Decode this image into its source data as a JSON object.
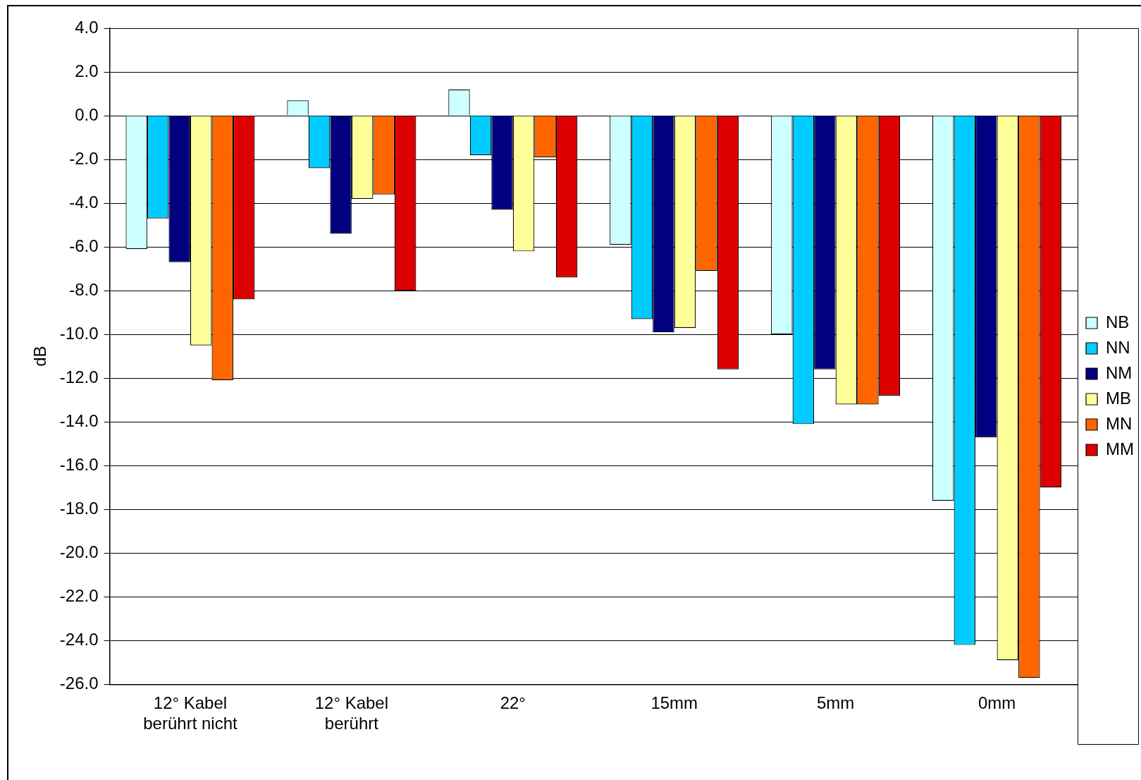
{
  "chart_data": {
    "type": "bar",
    "ylabel": "dB",
    "categories": [
      "12° Kabel\nberührt nicht",
      "12° Kabel\nberührt",
      "22°",
      "15mm",
      "5mm",
      "0mm"
    ],
    "series": [
      {
        "name": "NB",
        "color": "#ccffff",
        "values": [
          -6.1,
          0.7,
          1.2,
          -5.9,
          -10.0,
          -17.6
        ]
      },
      {
        "name": "NN",
        "color": "#00ccff",
        "values": [
          -4.7,
          -2.4,
          -1.8,
          -9.3,
          -14.1,
          -24.2
        ]
      },
      {
        "name": "NM",
        "color": "#000080",
        "values": [
          -6.7,
          -5.4,
          -4.3,
          -9.9,
          -11.6,
          -14.7
        ]
      },
      {
        "name": "MB",
        "color": "#ffff99",
        "values": [
          -10.5,
          -3.8,
          -6.2,
          -9.7,
          -13.2,
          -24.9
        ]
      },
      {
        "name": "MN",
        "color": "#ff6600",
        "values": [
          -12.1,
          -3.6,
          -1.9,
          -7.1,
          -13.2,
          -25.7
        ]
      },
      {
        "name": "MM",
        "color": "#dd0000",
        "values": [
          -8.4,
          -8.0,
          -7.4,
          -11.6,
          -12.8,
          -17.0
        ]
      }
    ],
    "ylim": [
      -26,
      4
    ],
    "yticks": [
      {
        "value": 4,
        "label": "4.0"
      },
      {
        "value": 2,
        "label": "2.0"
      },
      {
        "value": 0,
        "label": "0.0"
      },
      {
        "value": -2,
        "label": "-2.0"
      },
      {
        "value": -4,
        "label": "-4.0"
      },
      {
        "value": -6,
        "label": "-6.0"
      },
      {
        "value": -8,
        "label": "-8.0"
      },
      {
        "value": -10,
        "label": "-10.0"
      },
      {
        "value": -12,
        "label": "-12.0"
      },
      {
        "value": -14,
        "label": "-14.0"
      },
      {
        "value": -16,
        "label": "-16.0"
      },
      {
        "value": -18,
        "label": "-18.0"
      },
      {
        "value": -20,
        "label": "-20.0"
      },
      {
        "value": -22,
        "label": "-22.0"
      },
      {
        "value": -24,
        "label": "-24.0"
      },
      {
        "value": -26,
        "label": "-26.0"
      }
    ],
    "grid": "y",
    "legend": "right"
  }
}
